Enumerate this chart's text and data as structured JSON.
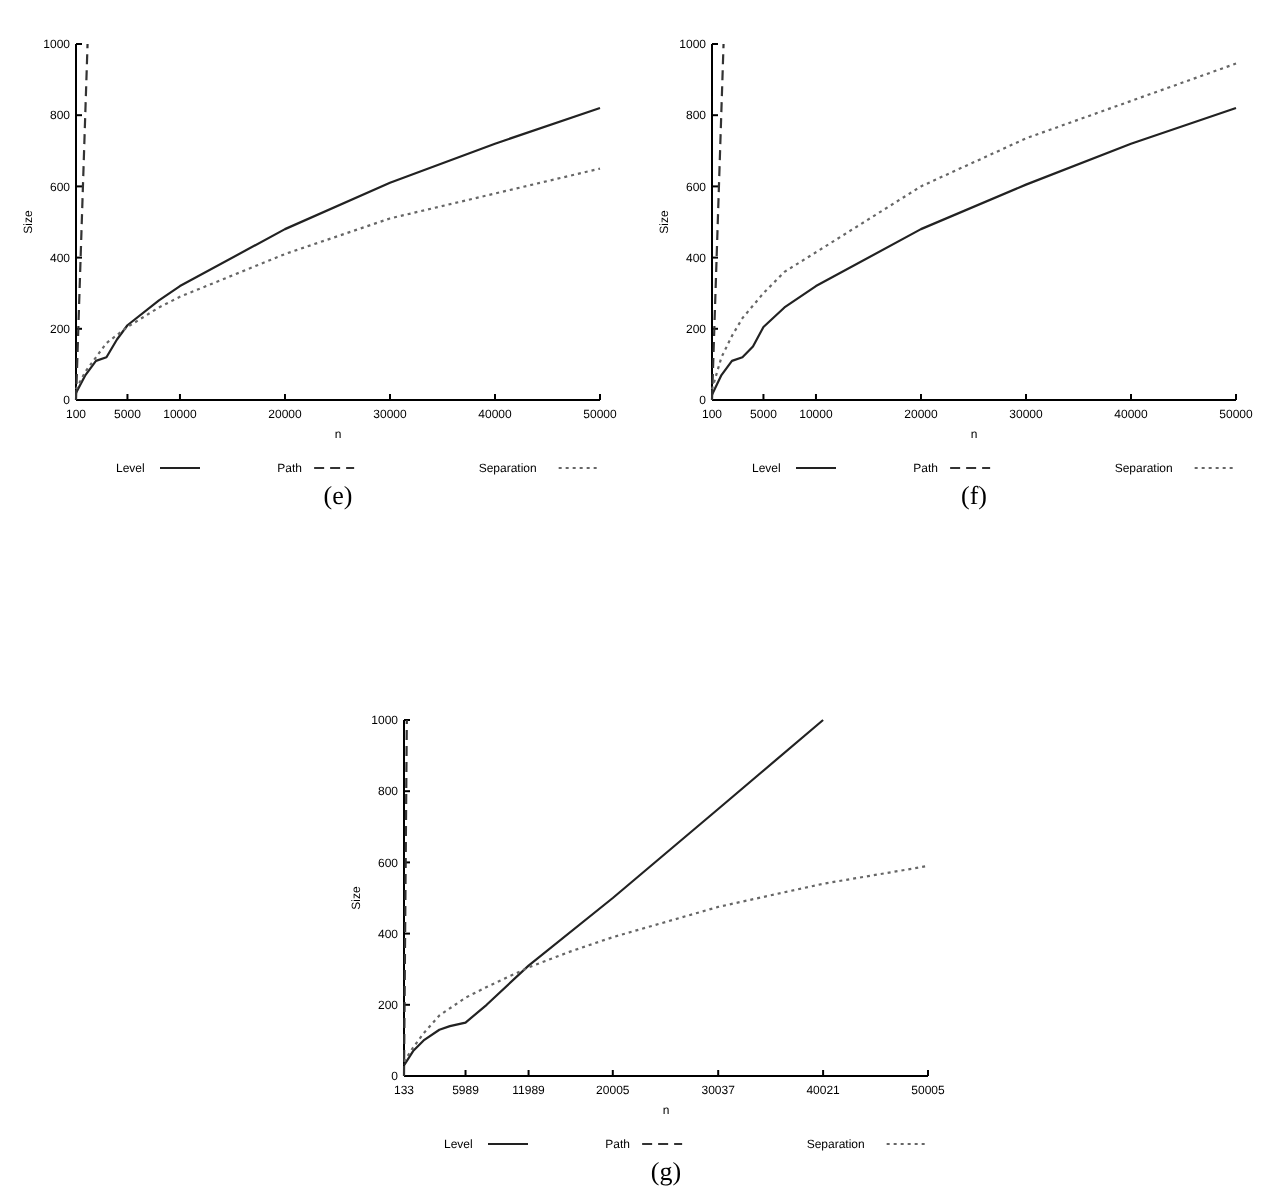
{
  "chart_data": [
    {
      "type": "line",
      "xlabel": "n",
      "ylabel": "Size",
      "xlim": [
        100,
        50000
      ],
      "xticks": [
        100,
        5000,
        10000,
        20000,
        30000,
        40000,
        50000
      ],
      "ylim": [
        0,
        1000
      ],
      "yticks": [
        0,
        200,
        400,
        600,
        800,
        1000
      ],
      "legend": "bottom",
      "annotations": [
        "(e)"
      ],
      "series": [
        {
          "name": "Level",
          "color": "#222222",
          "line_style": "solid",
          "x": [
            100,
            1000,
            2000,
            3000,
            4000,
            5000,
            8000,
            10000,
            20000,
            30000,
            40000,
            50000
          ],
          "values": [
            20,
            70,
            110,
            120,
            170,
            210,
            280,
            320,
            480,
            610,
            720,
            820
          ]
        },
        {
          "name": "Path",
          "color": "#333333",
          "line_style": "dashed",
          "x": [
            100,
            1200
          ],
          "values": [
            0,
            1000
          ]
        },
        {
          "name": "Separation",
          "color": "#666666",
          "line_style": "dotted",
          "x": [
            100,
            1000,
            2000,
            3000,
            5000,
            8000,
            10000,
            20000,
            30000,
            40000,
            50000
          ],
          "values": [
            30,
            80,
            120,
            160,
            205,
            260,
            290,
            410,
            510,
            580,
            650
          ]
        }
      ]
    },
    {
      "type": "line",
      "xlabel": "n",
      "ylabel": "Size",
      "xlim": [
        100,
        50000
      ],
      "xticks": [
        100,
        5000,
        10000,
        20000,
        30000,
        40000,
        50000
      ],
      "ylim": [
        0,
        1000
      ],
      "yticks": [
        0,
        200,
        400,
        600,
        800,
        1000
      ],
      "legend": "bottom",
      "annotations": [
        "(f)"
      ],
      "series": [
        {
          "name": "Level",
          "color": "#222222",
          "line_style": "solid",
          "x": [
            100,
            1000,
            2000,
            3000,
            4000,
            5000,
            7000,
            10000,
            20000,
            30000,
            40000,
            50000
          ],
          "values": [
            15,
            70,
            110,
            120,
            150,
            205,
            260,
            320,
            480,
            605,
            720,
            820
          ]
        },
        {
          "name": "Path",
          "color": "#333333",
          "line_style": "dashed",
          "x": [
            100,
            1200
          ],
          "values": [
            0,
            1000
          ]
        },
        {
          "name": "Separation",
          "color": "#666666",
          "line_style": "dotted",
          "x": [
            100,
            1000,
            2000,
            3000,
            5000,
            7000,
            10000,
            20000,
            30000,
            40000,
            50000
          ],
          "values": [
            30,
            120,
            180,
            230,
            300,
            360,
            415,
            600,
            735,
            840,
            945
          ]
        }
      ]
    },
    {
      "type": "line",
      "xlabel": "n",
      "ylabel": "Size",
      "xlim": [
        133,
        50005
      ],
      "xticks": [
        133,
        5989,
        11989,
        20005,
        30037,
        40021,
        50005
      ],
      "ylim": [
        0,
        1000
      ],
      "yticks": [
        0,
        200,
        400,
        600,
        800,
        1000
      ],
      "legend": "bottom",
      "annotations": [
        "(g)"
      ],
      "series": [
        {
          "name": "Level",
          "color": "#222222",
          "line_style": "solid",
          "x": [
            133,
            1000,
            2000,
            3500,
            4500,
            5989,
            8000,
            11989,
            20005,
            30037,
            40021
          ],
          "values": [
            30,
            70,
            100,
            130,
            140,
            150,
            200,
            310,
            500,
            750,
            1000
          ]
        },
        {
          "name": "Path",
          "color": "#333333",
          "line_style": "dashed",
          "x": [
            133,
            400
          ],
          "values": [
            0,
            1000
          ]
        },
        {
          "name": "Separation",
          "color": "#666666",
          "line_style": "dotted",
          "x": [
            133,
            1000,
            2000,
            3500,
            5989,
            8000,
            11989,
            16000,
            20005,
            30037,
            40021,
            50005
          ],
          "values": [
            40,
            80,
            120,
            170,
            220,
            250,
            305,
            350,
            390,
            475,
            540,
            590
          ]
        }
      ]
    }
  ]
}
